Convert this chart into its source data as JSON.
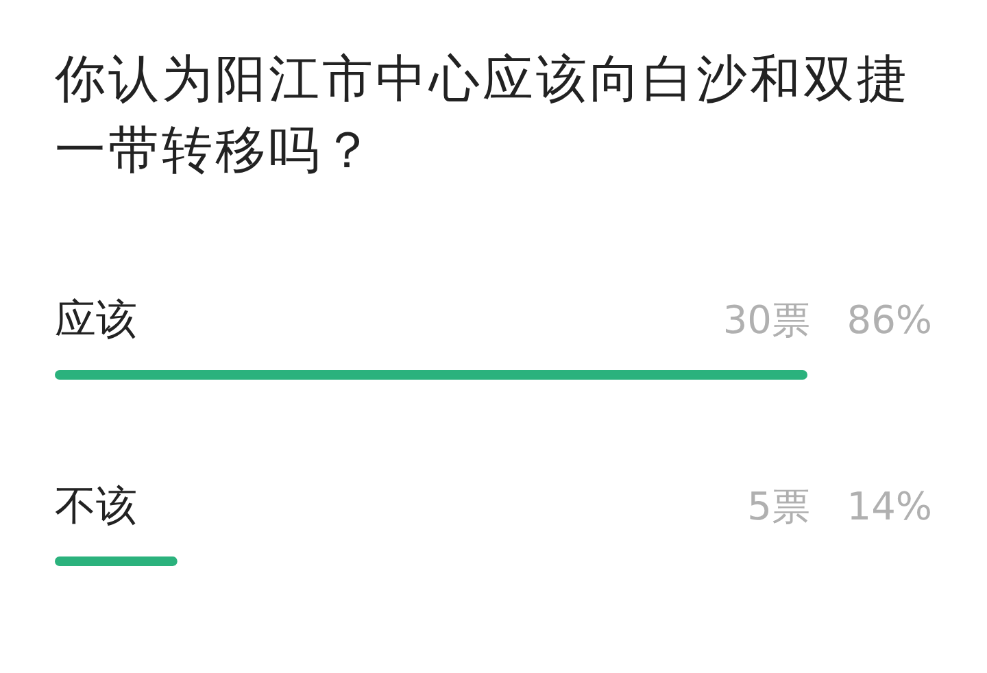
{
  "chart_data": {
    "type": "bar",
    "orientation": "horizontal",
    "title": "你认为阳江市中心应该向白沙和双捷一带转移吗？",
    "categories": [
      "应该",
      "不该"
    ],
    "values": [
      86,
      14
    ],
    "color": "#2bb27d",
    "value_labels": [
      "86%",
      "14%"
    ],
    "annotations": [
      "30票",
      "5票"
    ]
  }
}
